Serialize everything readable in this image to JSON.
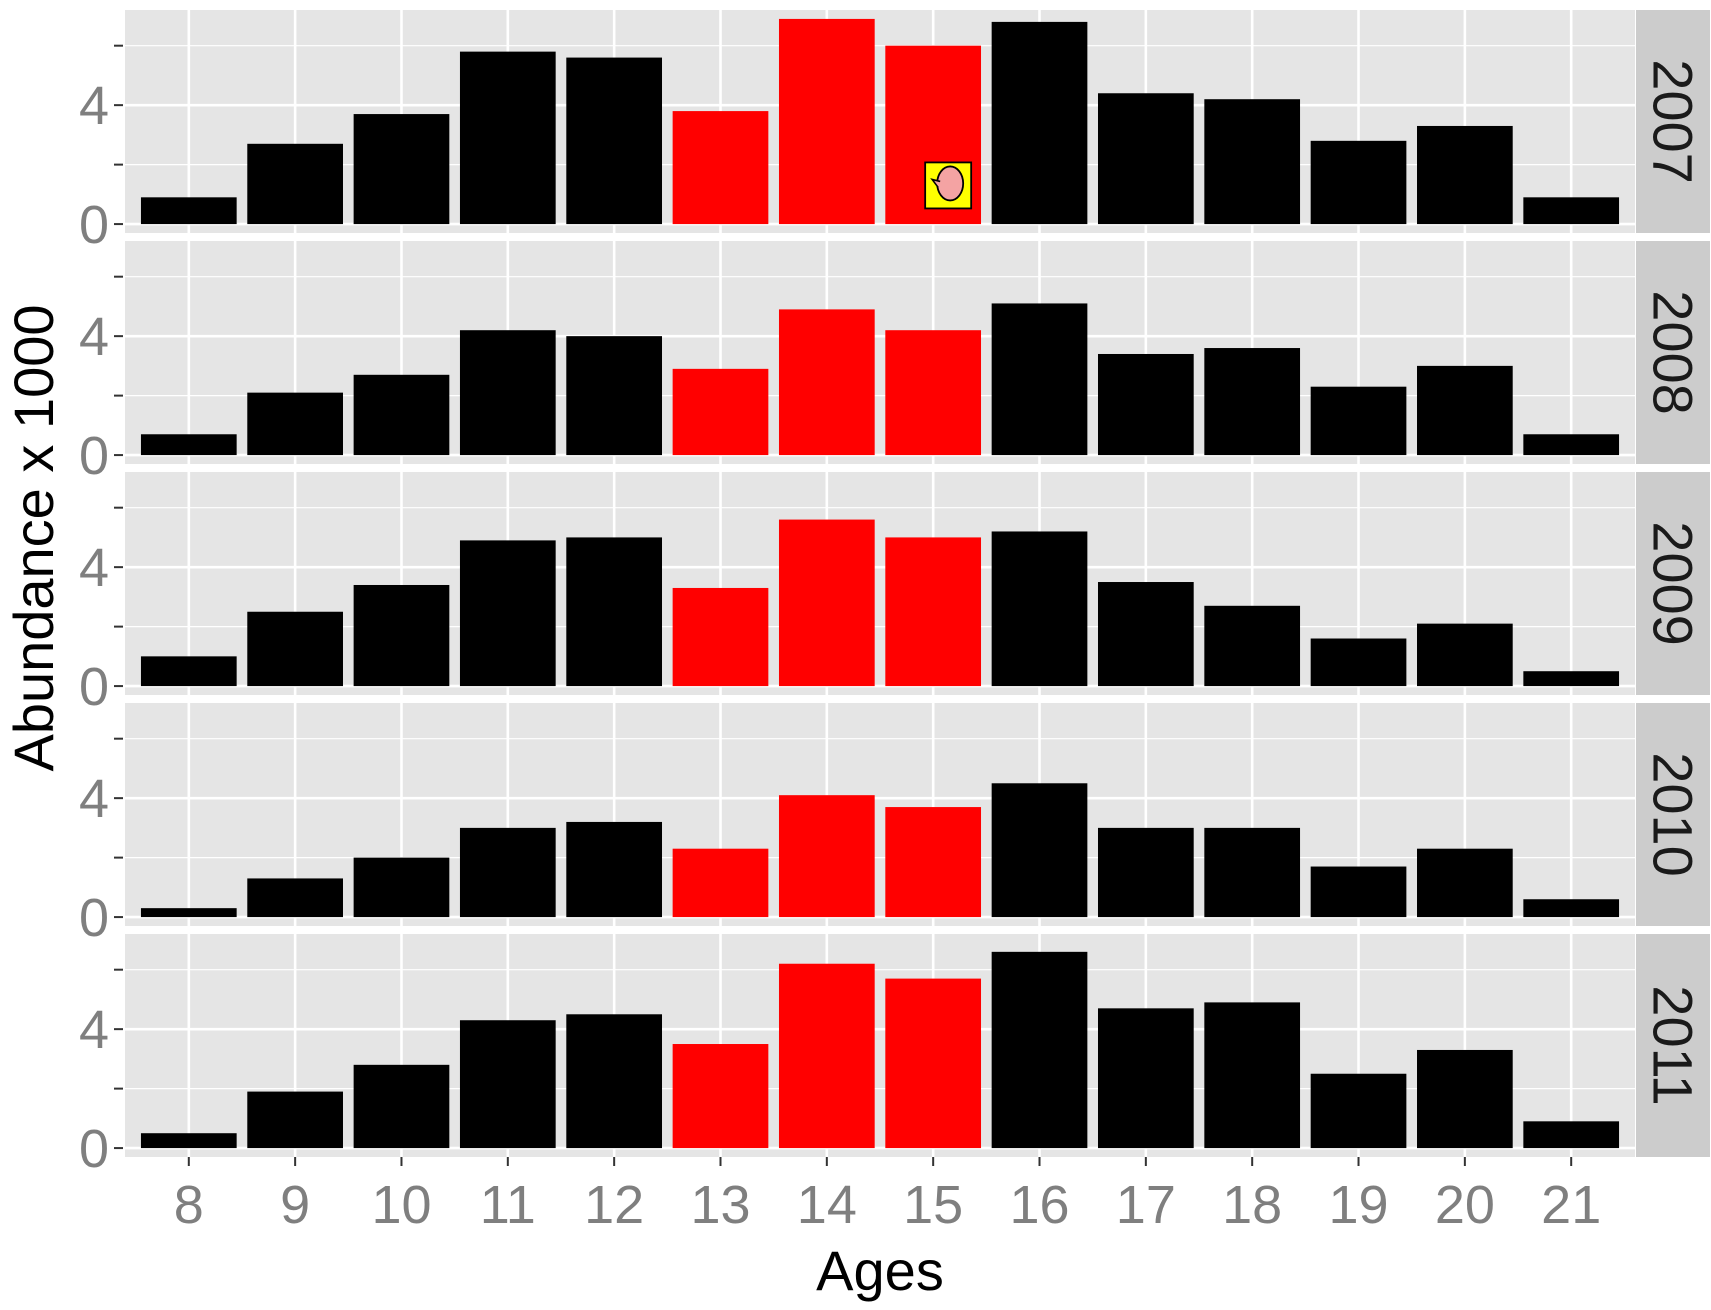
{
  "chart_data": {
    "type": "bar",
    "facet": "rows",
    "xlabel": "Ages",
    "ylabel": "Abundance x 1000",
    "categories": [
      "8",
      "9",
      "10",
      "11",
      "12",
      "13",
      "14",
      "15",
      "16",
      "17",
      "18",
      "19",
      "20",
      "21"
    ],
    "highlighted_categories": [
      "13",
      "14",
      "15"
    ],
    "ylim": [
      -0.3,
      7.2
    ],
    "y_ticks": [
      0,
      4
    ],
    "y_tick_labels": [
      "0",
      "4"
    ],
    "y_minor_ticks": [
      2,
      6
    ],
    "grid": true,
    "colors": {
      "panel_bg": "#e5e5e5",
      "grid": "#ffffff",
      "strip_bg": "#cccccc",
      "bar_default": "#000000",
      "bar_highlight": "#ff0000",
      "tick_text": "#7f7f7f",
      "title_text": "#000000",
      "marker_bg": "#ffff00",
      "marker_fill": "#f4a3a3"
    },
    "panels": [
      {
        "strip": "2007",
        "values": [
          0.9,
          2.7,
          3.7,
          5.8,
          5.6,
          3.8,
          6.9,
          6.0,
          6.8,
          4.4,
          4.2,
          2.8,
          3.3,
          0.9
        ],
        "marker": {
          "category": "15",
          "y": 1.3,
          "icon": "speech-bubble-icon"
        }
      },
      {
        "strip": "2008",
        "values": [
          0.7,
          2.1,
          2.7,
          4.2,
          4.0,
          2.9,
          4.9,
          4.2,
          5.1,
          3.4,
          3.6,
          2.3,
          3.0,
          0.7
        ]
      },
      {
        "strip": "2009",
        "values": [
          1.0,
          2.5,
          3.4,
          4.9,
          5.0,
          3.3,
          5.6,
          5.0,
          5.2,
          3.5,
          2.7,
          1.6,
          2.1,
          0.5
        ]
      },
      {
        "strip": "2010",
        "values": [
          0.3,
          1.3,
          2.0,
          3.0,
          3.2,
          2.3,
          4.1,
          3.7,
          4.5,
          3.0,
          3.0,
          1.7,
          2.3,
          0.6
        ]
      },
      {
        "strip": "2011",
        "values": [
          0.5,
          1.9,
          2.8,
          4.3,
          4.5,
          3.5,
          6.2,
          5.7,
          6.6,
          4.7,
          4.9,
          2.5,
          3.3,
          0.9
        ]
      }
    ]
  }
}
